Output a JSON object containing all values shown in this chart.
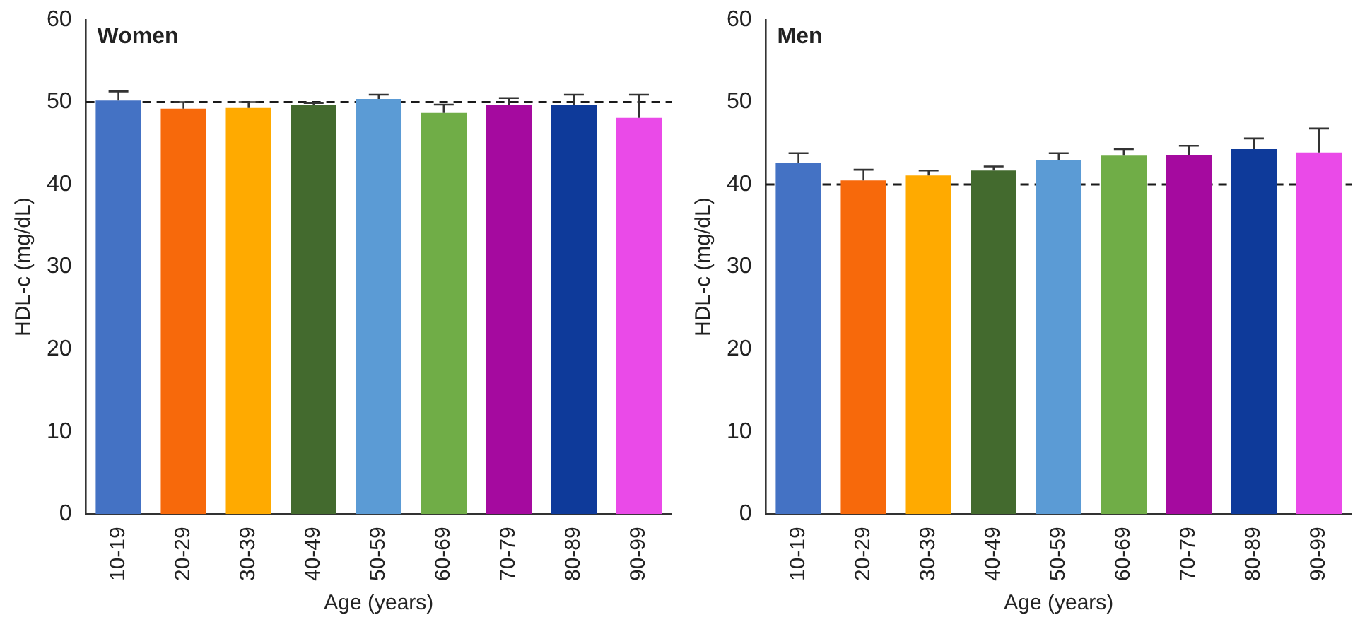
{
  "chart_data": [
    {
      "type": "bar",
      "title": "Women",
      "xlabel": "Age (years)",
      "ylabel": "HDL-c (mg/dL)",
      "categories": [
        "10-19",
        "20-29",
        "30-39",
        "40-49",
        "50-59",
        "60-69",
        "70-79",
        "80-89",
        "90-99"
      ],
      "colors": [
        "#4472c4",
        "#f7690b",
        "#ffaa00",
        "#436a2e",
        "#5b9bd5",
        "#70ad47",
        "#a50a9f",
        "#0e3a9a",
        "#ea4ae8"
      ],
      "values": [
        50.2,
        49.2,
        49.3,
        49.7,
        50.4,
        48.7,
        49.7,
        49.7,
        48.1
      ],
      "errors": [
        [
          50.2,
          51.3
        ],
        [
          49.2,
          50.0
        ],
        [
          49.3,
          50.0
        ],
        [
          49.7,
          49.9
        ],
        [
          50.4,
          50.9
        ],
        [
          48.7,
          49.7
        ],
        [
          49.7,
          50.5
        ],
        [
          49.7,
          50.9
        ],
        [
          48.1,
          50.9
        ]
      ],
      "ylim": [
        0,
        60
      ],
      "yticks": [
        0,
        10,
        20,
        30,
        40,
        50,
        60
      ],
      "ref_lines": [
        {
          "axis": "y",
          "value": 50,
          "line_style": "dashed",
          "color": "#1a1a1a"
        }
      ]
    },
    {
      "type": "bar",
      "title": "Men",
      "xlabel": "Age (years)",
      "ylabel": "HDL-c (mg/dL)",
      "categories": [
        "10-19",
        "20-29",
        "30-39",
        "40-49",
        "50-59",
        "60-69",
        "70-79",
        "80-89",
        "90-99"
      ],
      "colors": [
        "#4472c4",
        "#f7690b",
        "#ffaa00",
        "#436a2e",
        "#5b9bd5",
        "#70ad47",
        "#a50a9f",
        "#0e3a9a",
        "#ea4ae8"
      ],
      "values": [
        42.6,
        40.5,
        41.1,
        41.7,
        43.0,
        43.5,
        43.6,
        44.3,
        43.9
      ],
      "errors": [
        [
          42.6,
          43.8
        ],
        [
          40.5,
          41.8
        ],
        [
          41.1,
          41.7
        ],
        [
          41.7,
          42.2
        ],
        [
          43.0,
          43.8
        ],
        [
          43.5,
          44.3
        ],
        [
          43.6,
          44.7
        ],
        [
          44.3,
          45.6
        ],
        [
          43.9,
          46.8
        ]
      ],
      "ylim": [
        0,
        60
      ],
      "yticks": [
        0,
        10,
        20,
        30,
        40,
        50,
        60
      ],
      "ref_lines": [
        {
          "axis": "y",
          "value": 40,
          "line_style": "dashed",
          "color": "#1a1a1a"
        }
      ]
    }
  ]
}
